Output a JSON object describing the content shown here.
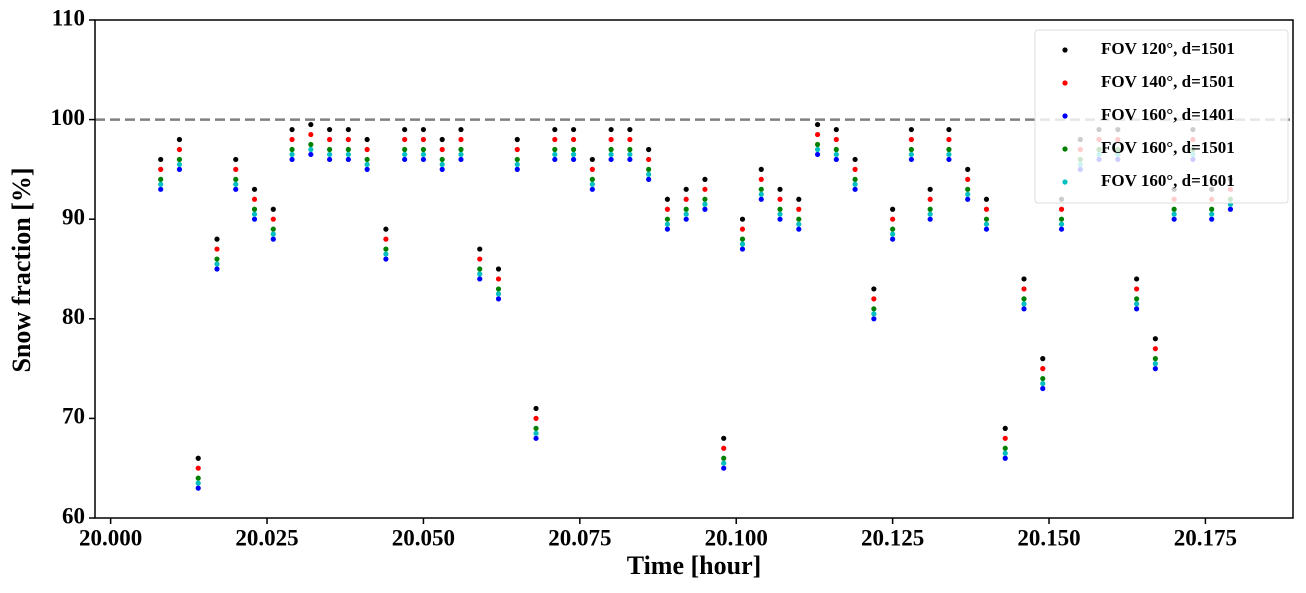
{
  "chart_data": {
    "type": "scatter",
    "x_label": "Time [hour]",
    "y_label": "Snow fraction [%]",
    "xlim": [
      19.9975,
      20.189
    ],
    "ylim": [
      60,
      110
    ],
    "xticks": [
      {
        "value": 20.0,
        "label": "20.000"
      },
      {
        "value": 20.025,
        "label": "20.025"
      },
      {
        "value": 20.05,
        "label": "20.050"
      },
      {
        "value": 20.075,
        "label": "20.075"
      },
      {
        "value": 20.1,
        "label": "20.100"
      },
      {
        "value": 20.125,
        "label": "20.125"
      },
      {
        "value": 20.15,
        "label": "20.150"
      },
      {
        "value": 20.175,
        "label": "20.175"
      }
    ],
    "yticks": [
      60,
      70,
      80,
      90,
      100,
      110
    ],
    "hline": 100,
    "legend": "upper right",
    "x": [
      20.008,
      20.011,
      20.014,
      20.017,
      20.02,
      20.023,
      20.026,
      20.029,
      20.032,
      20.035,
      20.038,
      20.041,
      20.044,
      20.047,
      20.05,
      20.053,
      20.056,
      20.059,
      20.062,
      20.065,
      20.068,
      20.071,
      20.074,
      20.077,
      20.08,
      20.083,
      20.086,
      20.089,
      20.092,
      20.095,
      20.098,
      20.101,
      20.104,
      20.107,
      20.11,
      20.113,
      20.116,
      20.119,
      20.122,
      20.125,
      20.128,
      20.131,
      20.134,
      20.137,
      20.14,
      20.143,
      20.146,
      20.149,
      20.152,
      20.155,
      20.158,
      20.161,
      20.164,
      20.167,
      20.17,
      20.173,
      20.176,
      20.179
    ],
    "series": [
      {
        "name": "FOV 120°, d=1501",
        "color": "#000000",
        "values": [
          96,
          98,
          66,
          88,
          96,
          93,
          91,
          99,
          99.5,
          99,
          99,
          98,
          89,
          99,
          99,
          98,
          99,
          87,
          85,
          98,
          71,
          99,
          99,
          96,
          99,
          99,
          97,
          92,
          93,
          94,
          68,
          90,
          95,
          93,
          92,
          99.5,
          99,
          96,
          83,
          91,
          99,
          93,
          99,
          95,
          92,
          69,
          84,
          76,
          92,
          98,
          99,
          99,
          84,
          78,
          93,
          99,
          93,
          94
        ]
      },
      {
        "name": "FOV 140°, d=1501",
        "color": "#ff0000",
        "values": [
          95,
          97,
          65,
          87,
          95,
          92,
          90,
          98,
          98.5,
          98,
          98,
          97,
          88,
          98,
          98,
          97,
          98,
          86,
          84,
          97,
          70,
          98,
          98,
          95,
          98,
          98,
          96,
          91,
          92,
          93,
          67,
          89,
          94,
          92,
          91,
          98.5,
          98,
          95,
          82,
          90,
          98,
          92,
          98,
          94,
          91,
          68,
          83,
          75,
          91,
          97,
          98,
          98,
          83,
          77,
          92,
          98,
          92,
          93
        ]
      },
      {
        "name": "FOV 160°, d=1401",
        "color": "#0000ff",
        "values": [
          93,
          95,
          63,
          85,
          93,
          90,
          88,
          96,
          96.5,
          96,
          96,
          95,
          86,
          96,
          96,
          95,
          96,
          84,
          82,
          95,
          68,
          96,
          96,
          93,
          96,
          96,
          94,
          89,
          90,
          91,
          65,
          87,
          92,
          90,
          89,
          96.5,
          96,
          93,
          80,
          88,
          96,
          90,
          96,
          92,
          89,
          66,
          81,
          73,
          89,
          95,
          96,
          96,
          81,
          75,
          90,
          96,
          90,
          91
        ]
      },
      {
        "name": "FOV 160°, d=1501",
        "color": "#008000",
        "values": [
          94,
          96,
          64,
          86,
          94,
          91,
          89,
          97,
          97.5,
          97,
          97,
          96,
          87,
          97,
          97,
          96,
          97,
          85,
          83,
          96,
          69,
          97,
          97,
          94,
          97,
          97,
          95,
          90,
          91,
          92,
          66,
          88,
          93,
          91,
          90,
          97.5,
          97,
          94,
          81,
          89,
          97,
          91,
          97,
          93,
          90,
          67,
          82,
          74,
          90,
          96,
          97,
          97,
          82,
          76,
          91,
          97,
          91,
          92
        ]
      },
      {
        "name": "FOV 160°, d=1601",
        "color": "#00bfbf",
        "values": [
          93.5,
          95.5,
          63.5,
          85.5,
          93.5,
          90.5,
          88.5,
          96.5,
          97,
          96.5,
          96.5,
          95.5,
          86.5,
          96.5,
          96.5,
          95.5,
          96.5,
          84.5,
          82.5,
          95.5,
          68.5,
          96.5,
          96.5,
          93.5,
          96.5,
          96.5,
          94.5,
          89.5,
          90.5,
          91.5,
          65.5,
          87.5,
          92.5,
          90.5,
          89.5,
          97,
          96.5,
          93.5,
          80.5,
          88.5,
          96.5,
          90.5,
          96.5,
          92.5,
          89.5,
          66.5,
          81.5,
          73.5,
          89.5,
          95.5,
          96.5,
          96.5,
          81.5,
          75.5,
          90.5,
          96.5,
          90.5,
          91.5
        ]
      }
    ]
  }
}
